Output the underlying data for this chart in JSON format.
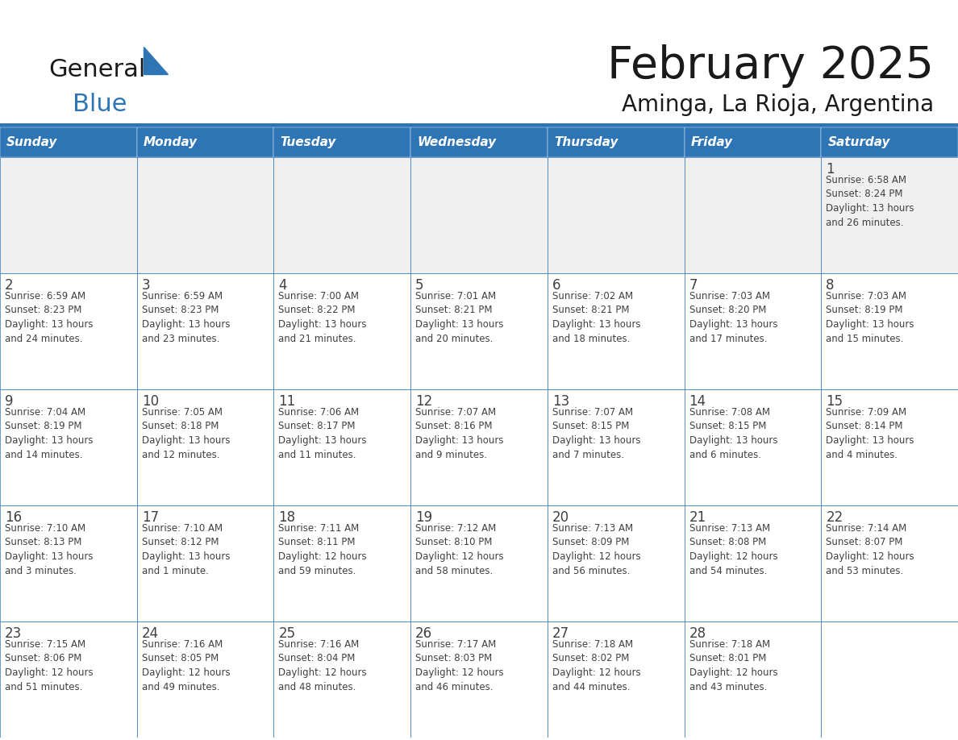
{
  "title": "February 2025",
  "subtitle": "Aminga, La Rioja, Argentina",
  "days_of_week": [
    "Sunday",
    "Monday",
    "Tuesday",
    "Wednesday",
    "Thursday",
    "Friday",
    "Saturday"
  ],
  "header_bg": "#2E75B6",
  "header_text": "#FFFFFF",
  "cell_bg_white": "#FFFFFF",
  "cell_bg_gray": "#F0F0F0",
  "border_color": "#2E75B6",
  "day_num_color": "#404040",
  "text_color": "#404040",
  "title_color": "#1a1a1a",
  "logo_general_color": "#1a1a1a",
  "logo_blue_color": "#2E75B6",
  "logo_triangle_color": "#2E75B6",
  "weeks": [
    [
      {
        "day": null,
        "info": null
      },
      {
        "day": null,
        "info": null
      },
      {
        "day": null,
        "info": null
      },
      {
        "day": null,
        "info": null
      },
      {
        "day": null,
        "info": null
      },
      {
        "day": null,
        "info": null
      },
      {
        "day": 1,
        "info": "Sunrise: 6:58 AM\nSunset: 8:24 PM\nDaylight: 13 hours\nand 26 minutes."
      }
    ],
    [
      {
        "day": 2,
        "info": "Sunrise: 6:59 AM\nSunset: 8:23 PM\nDaylight: 13 hours\nand 24 minutes."
      },
      {
        "day": 3,
        "info": "Sunrise: 6:59 AM\nSunset: 8:23 PM\nDaylight: 13 hours\nand 23 minutes."
      },
      {
        "day": 4,
        "info": "Sunrise: 7:00 AM\nSunset: 8:22 PM\nDaylight: 13 hours\nand 21 minutes."
      },
      {
        "day": 5,
        "info": "Sunrise: 7:01 AM\nSunset: 8:21 PM\nDaylight: 13 hours\nand 20 minutes."
      },
      {
        "day": 6,
        "info": "Sunrise: 7:02 AM\nSunset: 8:21 PM\nDaylight: 13 hours\nand 18 minutes."
      },
      {
        "day": 7,
        "info": "Sunrise: 7:03 AM\nSunset: 8:20 PM\nDaylight: 13 hours\nand 17 minutes."
      },
      {
        "day": 8,
        "info": "Sunrise: 7:03 AM\nSunset: 8:19 PM\nDaylight: 13 hours\nand 15 minutes."
      }
    ],
    [
      {
        "day": 9,
        "info": "Sunrise: 7:04 AM\nSunset: 8:19 PM\nDaylight: 13 hours\nand 14 minutes."
      },
      {
        "day": 10,
        "info": "Sunrise: 7:05 AM\nSunset: 8:18 PM\nDaylight: 13 hours\nand 12 minutes."
      },
      {
        "day": 11,
        "info": "Sunrise: 7:06 AM\nSunset: 8:17 PM\nDaylight: 13 hours\nand 11 minutes."
      },
      {
        "day": 12,
        "info": "Sunrise: 7:07 AM\nSunset: 8:16 PM\nDaylight: 13 hours\nand 9 minutes."
      },
      {
        "day": 13,
        "info": "Sunrise: 7:07 AM\nSunset: 8:15 PM\nDaylight: 13 hours\nand 7 minutes."
      },
      {
        "day": 14,
        "info": "Sunrise: 7:08 AM\nSunset: 8:15 PM\nDaylight: 13 hours\nand 6 minutes."
      },
      {
        "day": 15,
        "info": "Sunrise: 7:09 AM\nSunset: 8:14 PM\nDaylight: 13 hours\nand 4 minutes."
      }
    ],
    [
      {
        "day": 16,
        "info": "Sunrise: 7:10 AM\nSunset: 8:13 PM\nDaylight: 13 hours\nand 3 minutes."
      },
      {
        "day": 17,
        "info": "Sunrise: 7:10 AM\nSunset: 8:12 PM\nDaylight: 13 hours\nand 1 minute."
      },
      {
        "day": 18,
        "info": "Sunrise: 7:11 AM\nSunset: 8:11 PM\nDaylight: 12 hours\nand 59 minutes."
      },
      {
        "day": 19,
        "info": "Sunrise: 7:12 AM\nSunset: 8:10 PM\nDaylight: 12 hours\nand 58 minutes."
      },
      {
        "day": 20,
        "info": "Sunrise: 7:13 AM\nSunset: 8:09 PM\nDaylight: 12 hours\nand 56 minutes."
      },
      {
        "day": 21,
        "info": "Sunrise: 7:13 AM\nSunset: 8:08 PM\nDaylight: 12 hours\nand 54 minutes."
      },
      {
        "day": 22,
        "info": "Sunrise: 7:14 AM\nSunset: 8:07 PM\nDaylight: 12 hours\nand 53 minutes."
      }
    ],
    [
      {
        "day": 23,
        "info": "Sunrise: 7:15 AM\nSunset: 8:06 PM\nDaylight: 12 hours\nand 51 minutes."
      },
      {
        "day": 24,
        "info": "Sunrise: 7:16 AM\nSunset: 8:05 PM\nDaylight: 12 hours\nand 49 minutes."
      },
      {
        "day": 25,
        "info": "Sunrise: 7:16 AM\nSunset: 8:04 PM\nDaylight: 12 hours\nand 48 minutes."
      },
      {
        "day": 26,
        "info": "Sunrise: 7:17 AM\nSunset: 8:03 PM\nDaylight: 12 hours\nand 46 minutes."
      },
      {
        "day": 27,
        "info": "Sunrise: 7:18 AM\nSunset: 8:02 PM\nDaylight: 12 hours\nand 44 minutes."
      },
      {
        "day": 28,
        "info": "Sunrise: 7:18 AM\nSunset: 8:01 PM\nDaylight: 12 hours\nand 43 minutes."
      },
      {
        "day": null,
        "info": null
      }
    ]
  ]
}
